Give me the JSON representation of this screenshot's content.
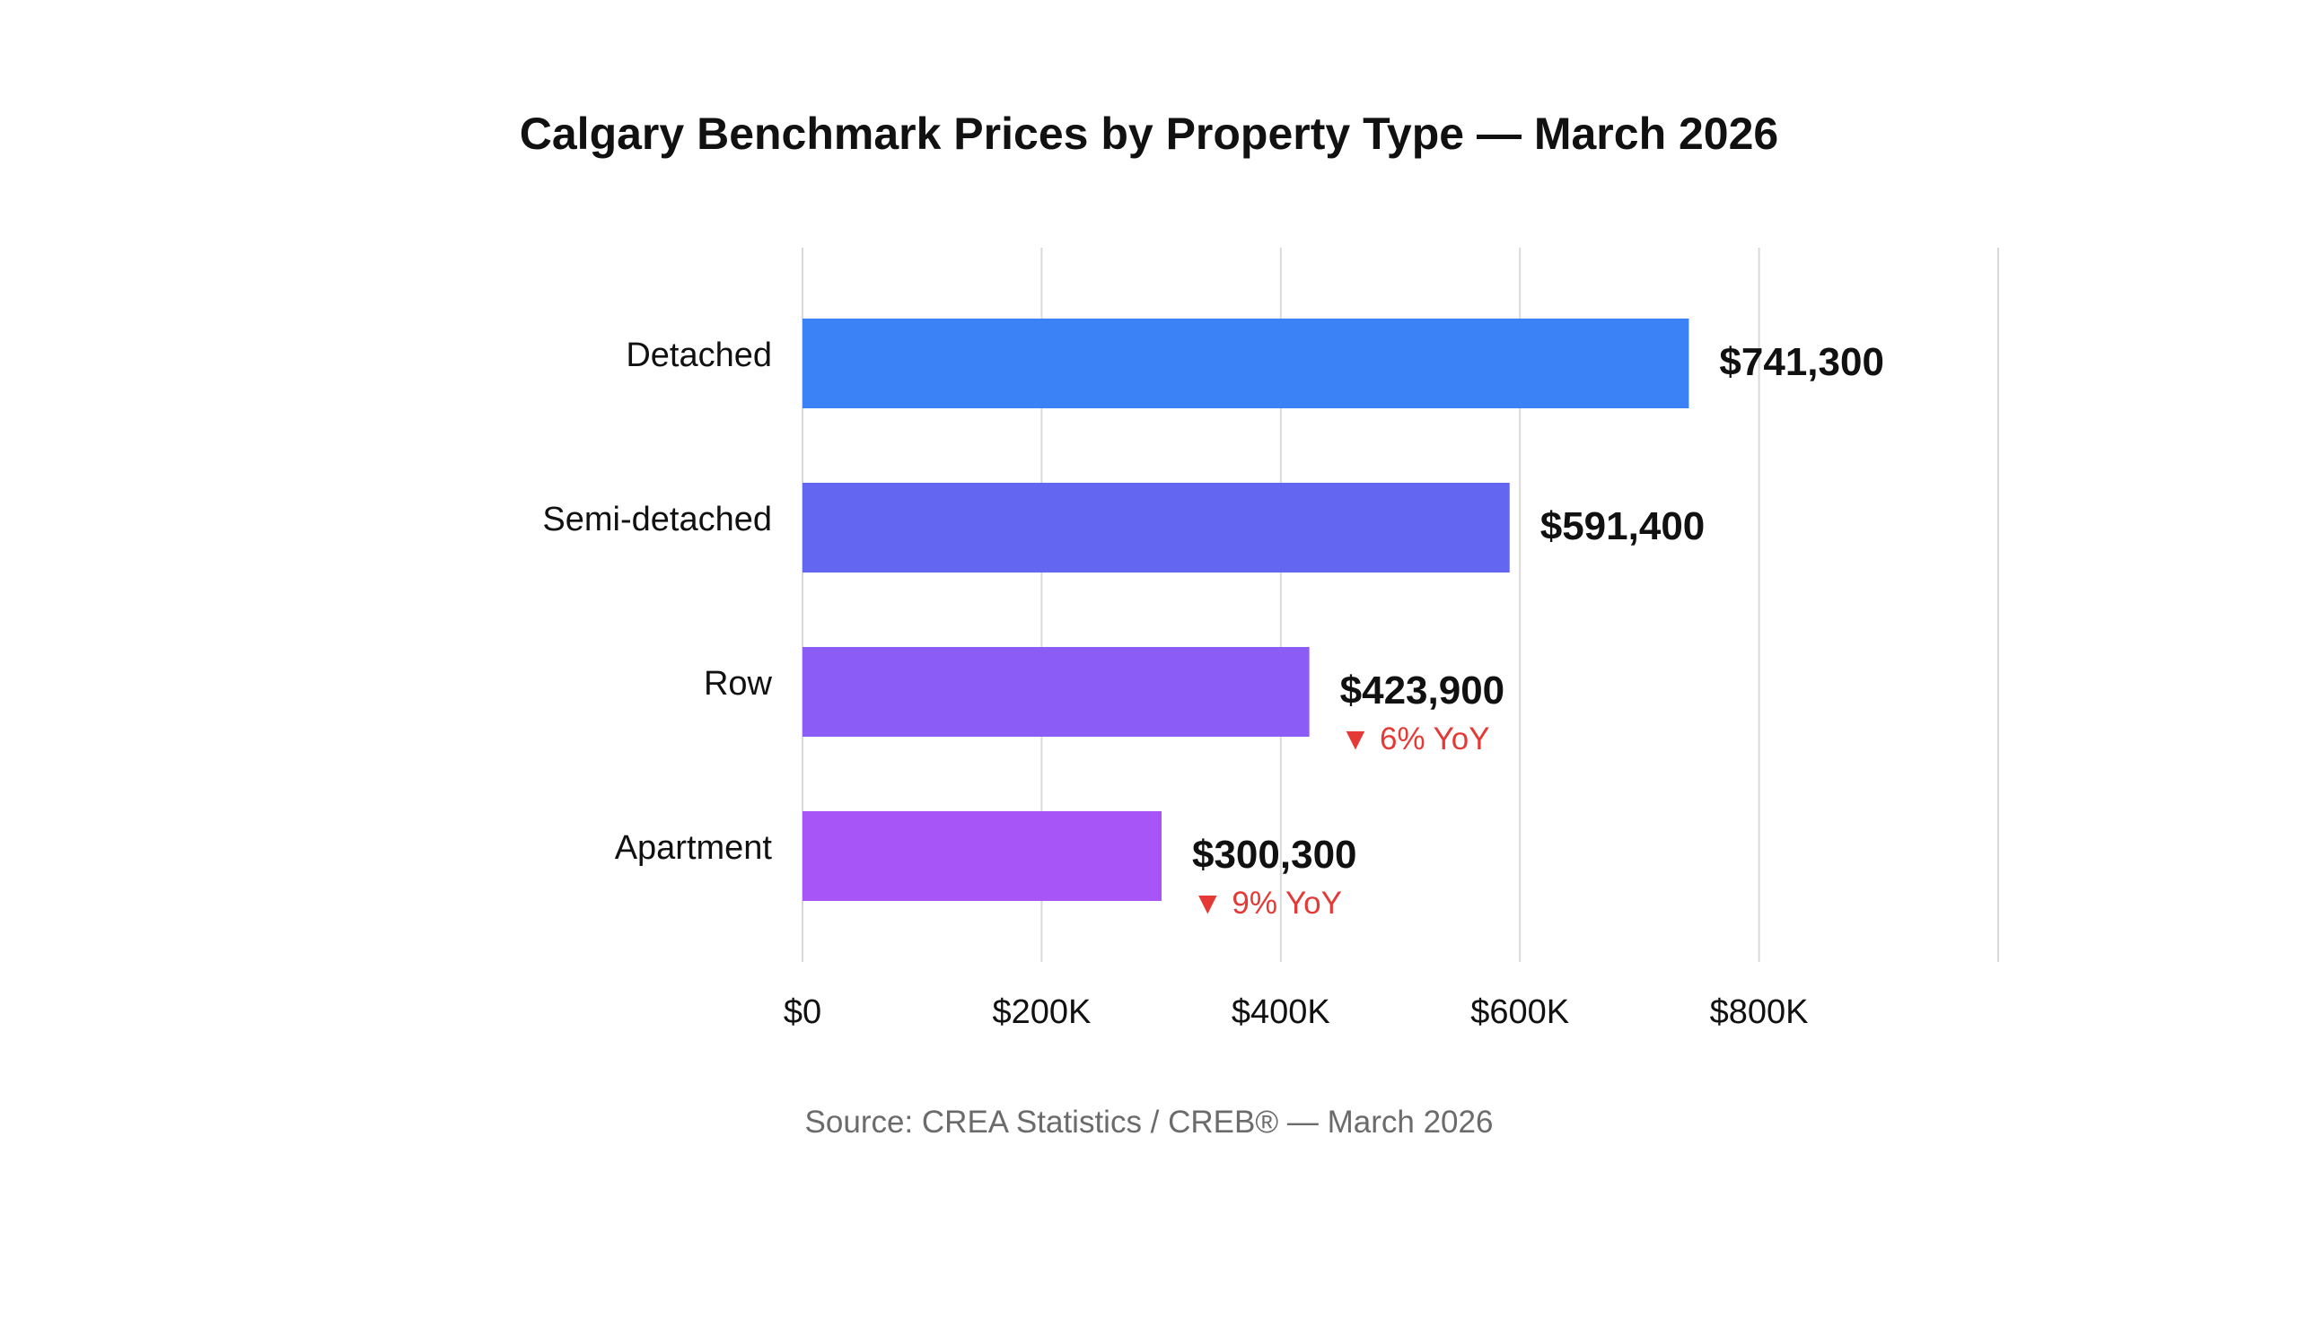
{
  "chart_data": {
    "type": "bar",
    "orientation": "horizontal",
    "title": "Calgary Benchmark Prices by Property Type — March 2026",
    "categories": [
      "Detached",
      "Semi-detached",
      "Row",
      "Apartment"
    ],
    "values": [
      741300,
      591400,
      423900,
      300300
    ],
    "value_labels": [
      "$741,300",
      "$591,400",
      "$423,900",
      "$300,300"
    ],
    "yoy_labels": [
      "",
      "",
      "▼ 6% YoY",
      "▼ 9% YoY"
    ],
    "bar_colors": [
      "#3b82f6",
      "#6366f1",
      "#8b5cf6",
      "#a855f7"
    ],
    "yoy_color": "#e53935",
    "xlim": [
      0,
      1000000
    ],
    "x_ticks": [
      0,
      200000,
      400000,
      600000,
      800000,
      1000000
    ],
    "x_tick_labels": [
      "$0",
      "$200K",
      "$400K",
      "$600K",
      "$800K",
      ""
    ],
    "grid": true,
    "xlabel": "",
    "ylabel": "",
    "source": "Source: CREA Statistics / CREB® — March 2026"
  }
}
